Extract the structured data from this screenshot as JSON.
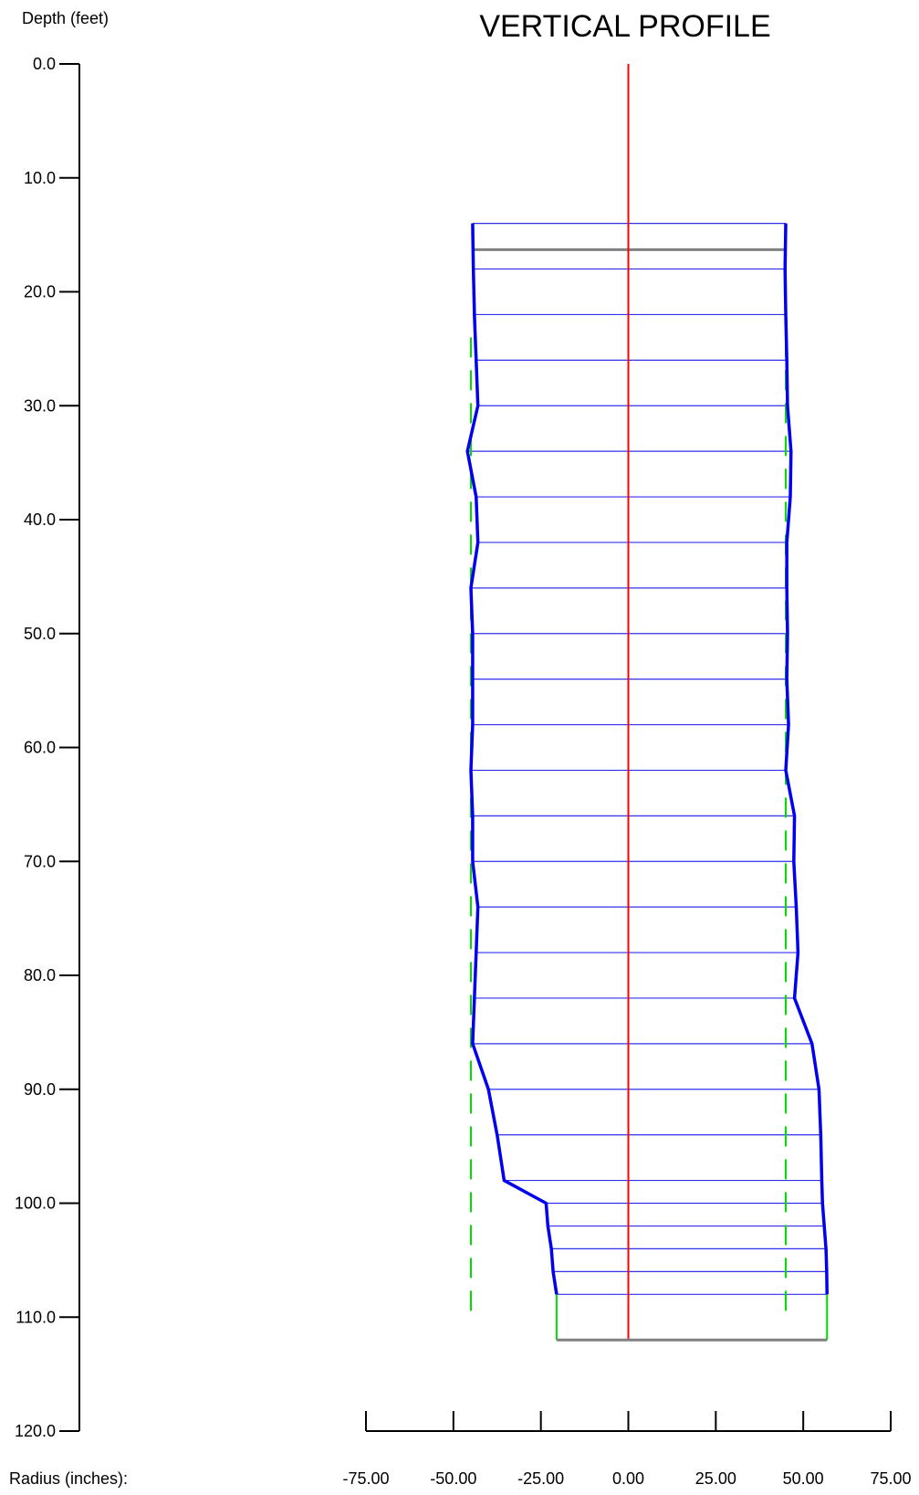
{
  "chart_data": {
    "type": "line",
    "title": "VERTICAL PROFILE",
    "ylabel": "Depth (feet)",
    "xlabel": "Radius (inches):",
    "ylim": [
      0,
      120
    ],
    "xlim": [
      -75,
      75
    ],
    "y_ticks": [
      "0.0",
      "10.0",
      "20.0",
      "30.0",
      "40.0",
      "50.0",
      "60.0",
      "70.0",
      "80.0",
      "90.0",
      "100.0",
      "110.0",
      "120.0"
    ],
    "x_ticks": [
      "-75.00",
      "-50.00",
      "-25.00",
      "0.00",
      "25.00",
      "50.00",
      "75.00"
    ],
    "profile": {
      "depth": [
        14,
        18,
        22,
        26,
        30,
        34,
        38,
        42,
        46,
        50,
        54,
        58,
        62,
        66,
        70,
        74,
        78,
        82,
        86,
        90,
        94,
        98,
        100,
        102,
        104,
        106,
        108
      ],
      "left_radius": [
        -44.5,
        -44.3,
        -44,
        -43.5,
        -43,
        -46,
        -43.5,
        -43,
        -45,
        -44.5,
        -44.5,
        -44.5,
        -45,
        -44.5,
        -44.5,
        -43,
        -43.5,
        -44,
        -44.5,
        -40,
        -37.5,
        -35.5,
        -23.5,
        -23,
        -22,
        -21.5,
        -20.5
      ],
      "right_radius": [
        45,
        44.8,
        45,
        45.3,
        45.5,
        46.5,
        46.3,
        45.3,
        45.3,
        45.5,
        45.3,
        45.8,
        45,
        47.5,
        47.3,
        48,
        48.5,
        47.5,
        52.5,
        54.5,
        55,
        55.3,
        55.5,
        56,
        56.5,
        56.7,
        56.8
      ]
    },
    "reference_diameter": {
      "left": -45,
      "right": 45,
      "from_depth": 24,
      "to_depth": 110
    },
    "top_level_depth": 16.3,
    "bottom_depth": 112,
    "bottom_extent": {
      "left": -20.5,
      "right": 56.8
    },
    "centerline_x": 0,
    "colors": {
      "profile": "#0000ee",
      "section": "#3030ee",
      "centerline": "#ff0000",
      "reference": "#00dd00",
      "level": "#808080",
      "axis": "#000000"
    }
  }
}
